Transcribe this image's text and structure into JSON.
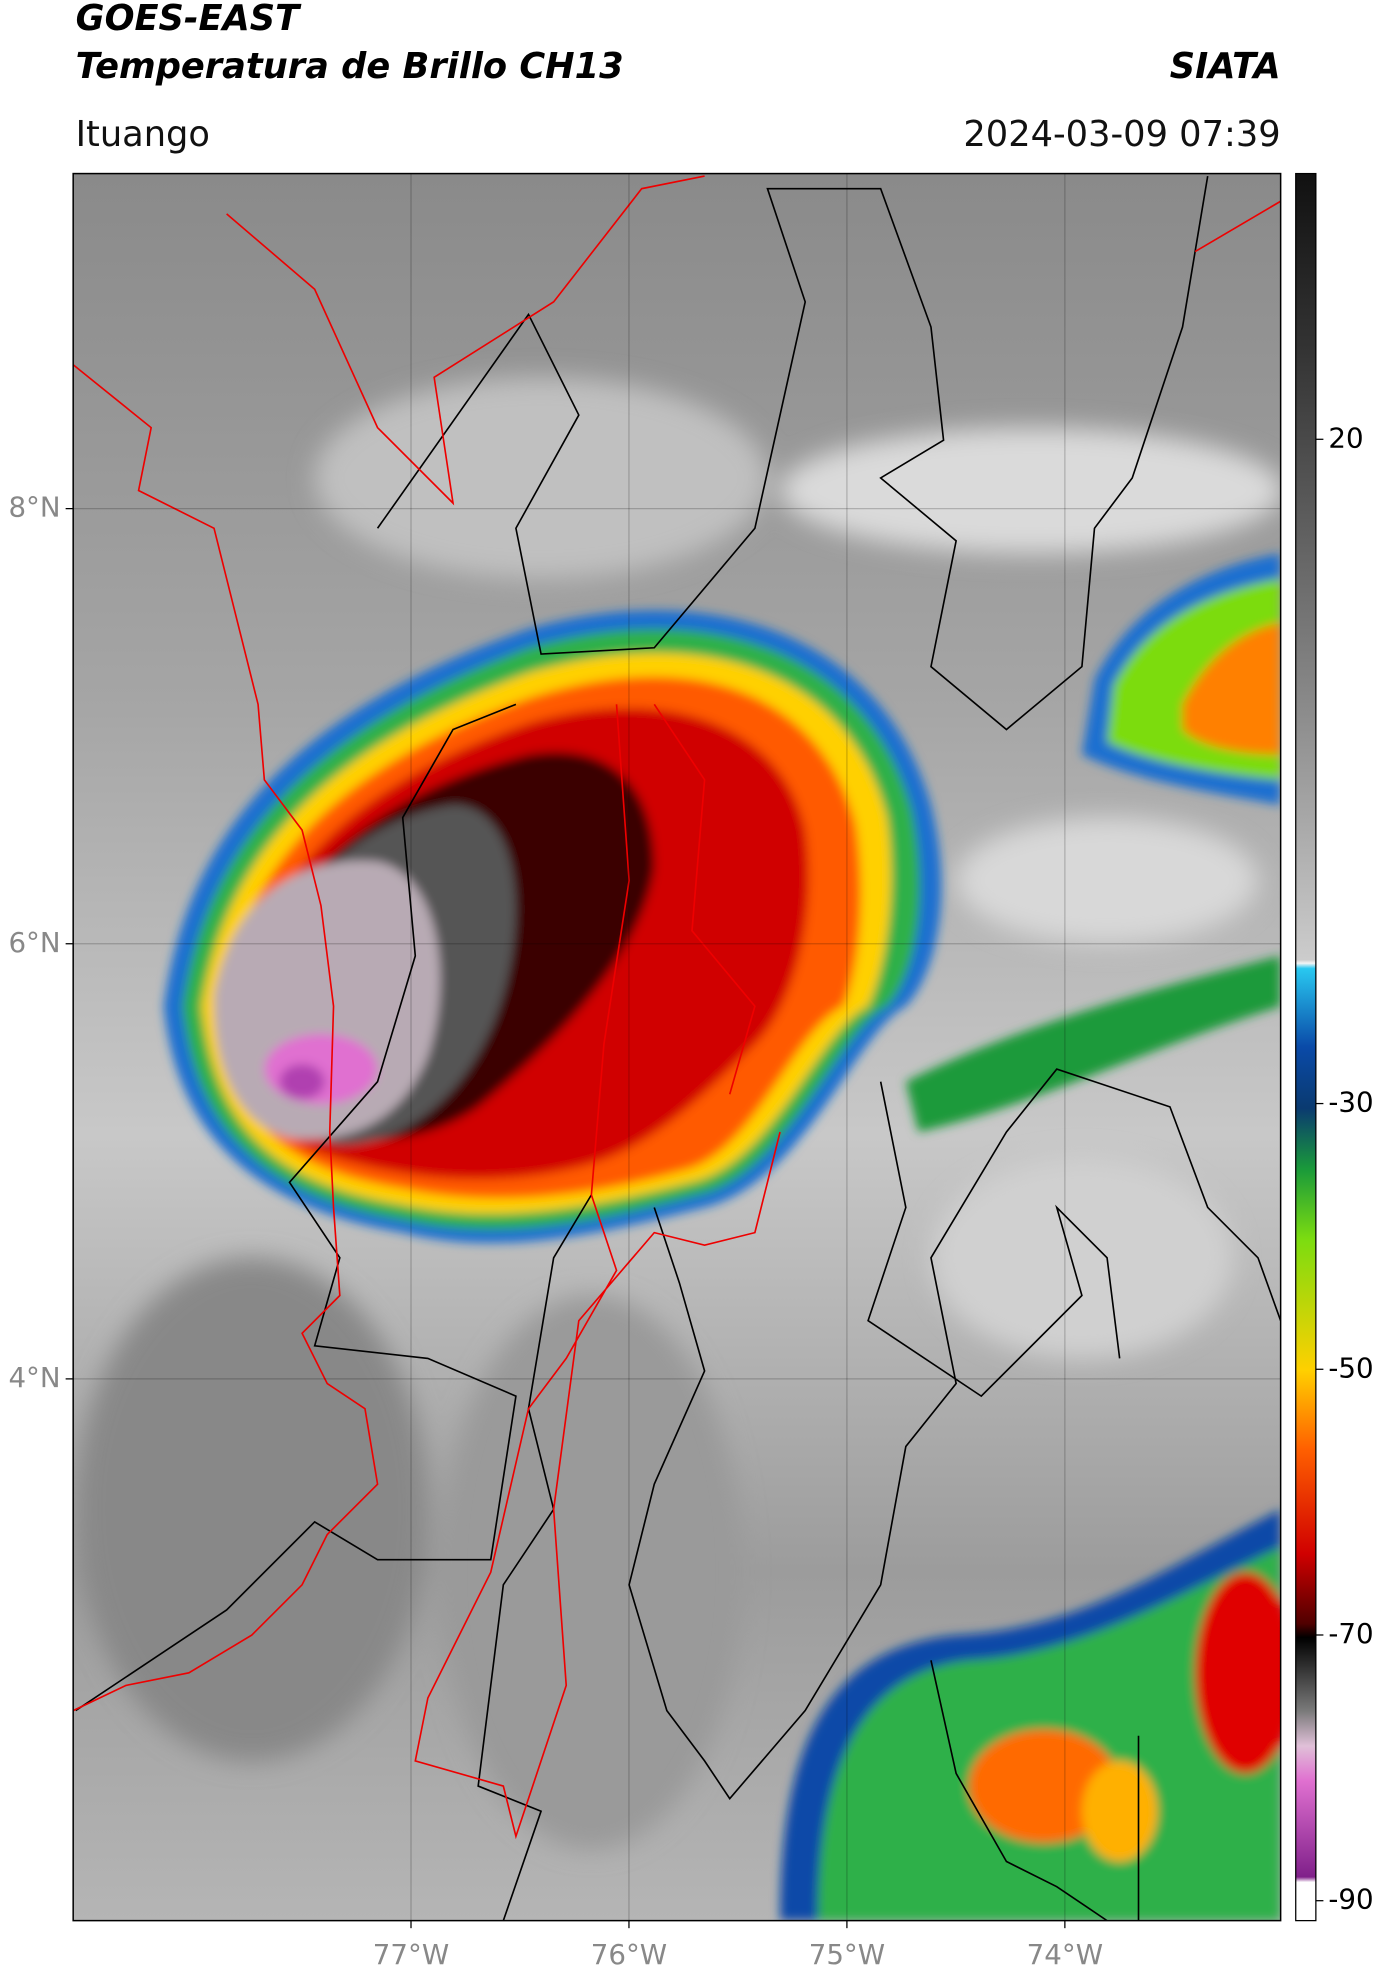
{
  "header": {
    "title": "GOES-EAST",
    "subtitle": "Temperatura de Brillo CH13",
    "brand": "SIATA",
    "location": "Ituango",
    "timestamp": "2024-03-09 07:39"
  },
  "map": {
    "lat_range": [
      1.51,
      9.54
    ],
    "lon_range": [
      -78.55,
      -73.01
    ],
    "lat_ticks": [
      {
        "value": 8,
        "label": "8°N"
      },
      {
        "value": 6,
        "label": "6°N"
      },
      {
        "value": 4,
        "label": "4°N"
      }
    ],
    "lon_ticks": [
      {
        "value": -77,
        "label": "77°W"
      },
      {
        "value": -76,
        "label": "76°W"
      },
      {
        "value": -75,
        "label": "75°W"
      },
      {
        "value": -74,
        "label": "74°W"
      }
    ]
  },
  "colorbar": {
    "range": [
      -91.5,
      40
    ],
    "ticks": [
      20,
      -30,
      -50,
      -70,
      -90
    ]
  }
}
